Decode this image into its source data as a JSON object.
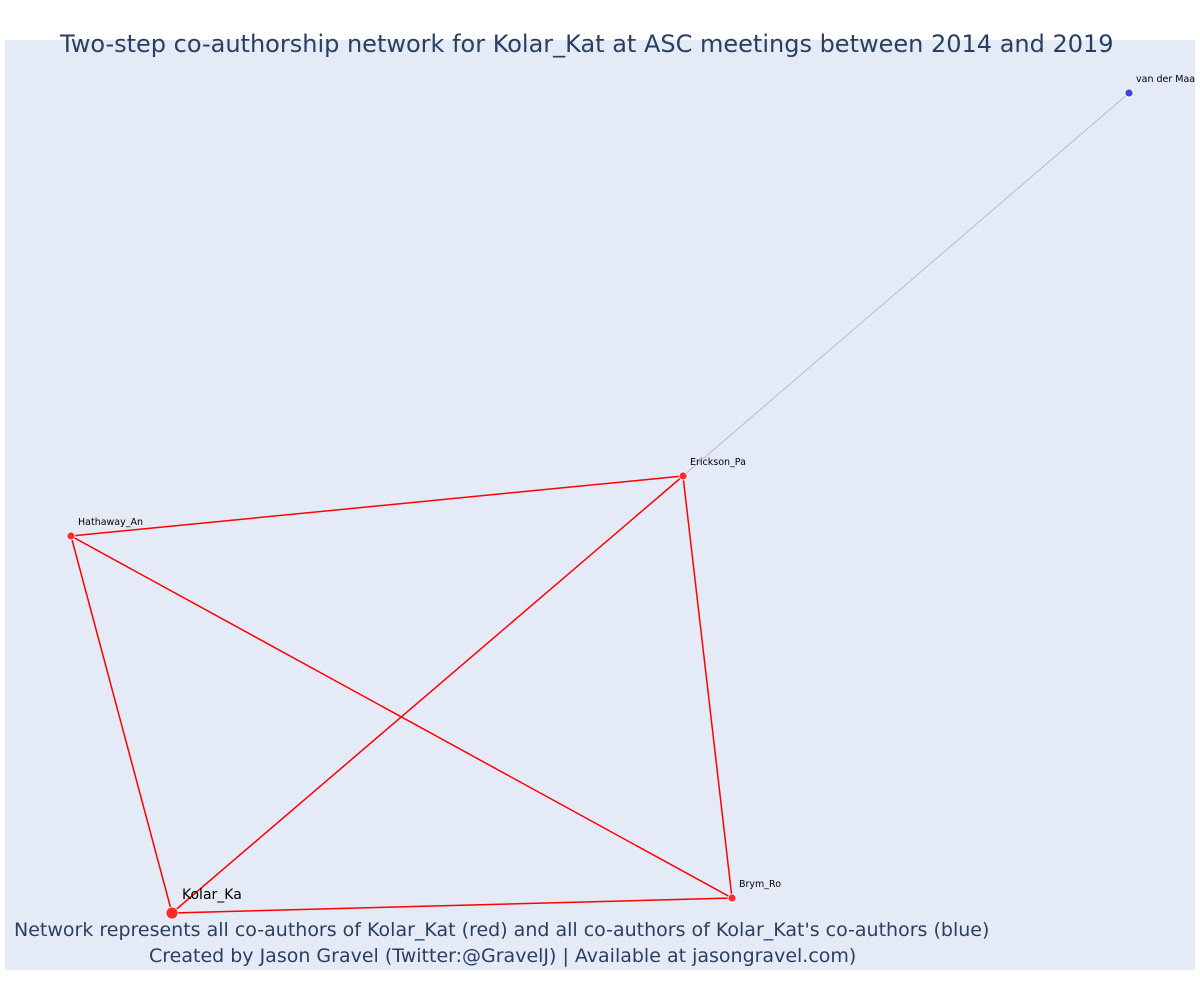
{
  "title": "Two-step co-authorship network for Kolar_Kat at ASC meetings between 2014 and 2019",
  "caption": {
    "line1": "Network represents all co-authors of Kolar_Kat (red) and all co-authors of Kolar_Kat's co-authors (blue)",
    "line2": "Created by Jason Gravel (Twitter:@GravelJ) | Available at jasongravel.com)"
  },
  "colors": {
    "background": "#e5ebf6",
    "ego_edge": "#ff0000",
    "ego_node": "#ff2a2a",
    "alter_edge": "#b8bccb",
    "alter_node": "#3a44e8",
    "title_text": "#2a3f5f"
  },
  "nodes": [
    {
      "id": "kolar",
      "label": "Kolar_Ka",
      "group": "ego",
      "focal": true
    },
    {
      "id": "hathaway",
      "label": "Hathaway_An",
      "group": "ego"
    },
    {
      "id": "erickson",
      "label": "Erickson_Pa",
      "group": "ego"
    },
    {
      "id": "brym",
      "label": "Brym_Ro",
      "group": "ego"
    },
    {
      "id": "vandermaa",
      "label": "van der Maa",
      "group": "alter"
    }
  ],
  "edges": [
    {
      "source": "kolar",
      "target": "hathaway",
      "group": "ego"
    },
    {
      "source": "kolar",
      "target": "erickson",
      "group": "ego"
    },
    {
      "source": "kolar",
      "target": "brym",
      "group": "ego"
    },
    {
      "source": "hathaway",
      "target": "erickson",
      "group": "ego"
    },
    {
      "source": "hathaway",
      "target": "brym",
      "group": "ego"
    },
    {
      "source": "erickson",
      "target": "brym",
      "group": "ego"
    },
    {
      "source": "erickson",
      "target": "vandermaa",
      "group": "alter"
    }
  ]
}
